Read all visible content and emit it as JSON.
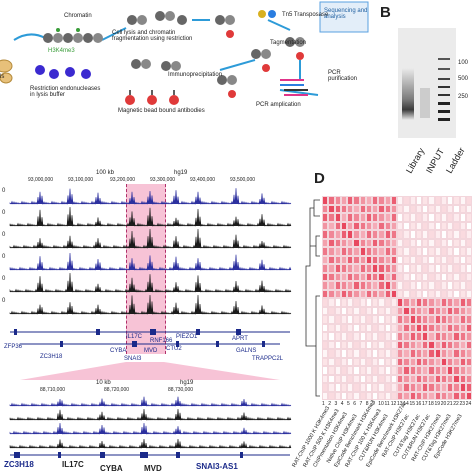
{
  "panelA": {
    "steps": {
      "chromatin": "Chromatin",
      "h3k4me3": "H3K4me3",
      "lysis": "Cell lysis and chromatin\nfragmentation using restriction",
      "restriction": "Restriction endonucleases\nin lysis buffer",
      "immuno": "Immunoprecipitation",
      "beads": "Magnetic bead bound antibodies",
      "tn5": "Tn5 Transposase",
      "tagmentation": "Tagmentation",
      "pcr_purification": "PCR\npurification",
      "pcr_amplification": "PCR amplication",
      "sequencing": "Sequencing and\nanalysis",
      "cells_partial": "ls"
    }
  },
  "panelB": {
    "letter": "B",
    "ladder_marks": [
      "100",
      "500",
      "250"
    ],
    "lanes": [
      "Library",
      "INPUT",
      "Ladder"
    ]
  },
  "panelC": {
    "scale": "100 kb",
    "genome": "hg19",
    "coords": [
      "93,000,000",
      "93,100,000",
      "93,200,000",
      "93,300,000",
      "93,400,000",
      "93,500,000"
    ],
    "track_partial_labels": [
      "0",
      "0",
      "0",
      "0",
      "0",
      "0"
    ],
    "genes_top": [
      "ZFP36",
      "ZC3H18",
      "IL17C",
      "CYBA",
      "MVD",
      "SNAI3",
      "RNF166",
      "CTU2",
      "PIEZO1",
      "APRT",
      "GALNS",
      "TRAPPC2L"
    ],
    "zoom_scale": "10 kb",
    "zoom_genome": "hg19",
    "zoom_coords": [
      "88,710,000",
      "88,720,000",
      "88,730,000"
    ],
    "genes_bottom": [
      "ZC3H18",
      "IL17C",
      "CYBA",
      "MVD",
      "SNAI3-AS1"
    ]
  },
  "panelD": {
    "letter": "D",
    "row_numbers": [
      "1",
      "2",
      "3",
      "4",
      "5",
      "6",
      "7",
      "8",
      "9",
      "10",
      "11",
      "12",
      "13",
      "14",
      "15",
      "16",
      "17",
      "18",
      "19",
      "20",
      "21",
      "22",
      "23",
      "24"
    ],
    "col_labels": [
      "RAT-ChIP 1000 K H3K4me3",
      "RAT-ChIP 500 K H3K4me3",
      "ChIPmentation H3K4me3",
      "Native ChIP H3K4me3",
      "EpiCode Benchmark H3K4me3",
      "RAT-ChIP 100 K H3K4me3",
      "CUT&RUN H3K4me3",
      "EpiCode Benchmark H3K27ac",
      "RAT-ChIP H3K27ac",
      "CUT&Tag H3K27ac",
      "CUT&RUN H3K27ac",
      "RAT-ChIP H3K27me3",
      "CUT&Tag H3K27me3",
      "EpiCode H3K27me3"
    ]
  },
  "colors": {
    "blue_track": "#2b2f9e",
    "black_track": "#1a1a1a",
    "highlight": "#f5bfd4",
    "heat_high": "#e8485f",
    "heat_low": "#ffffff",
    "accent_box": "#5aa0e0"
  }
}
